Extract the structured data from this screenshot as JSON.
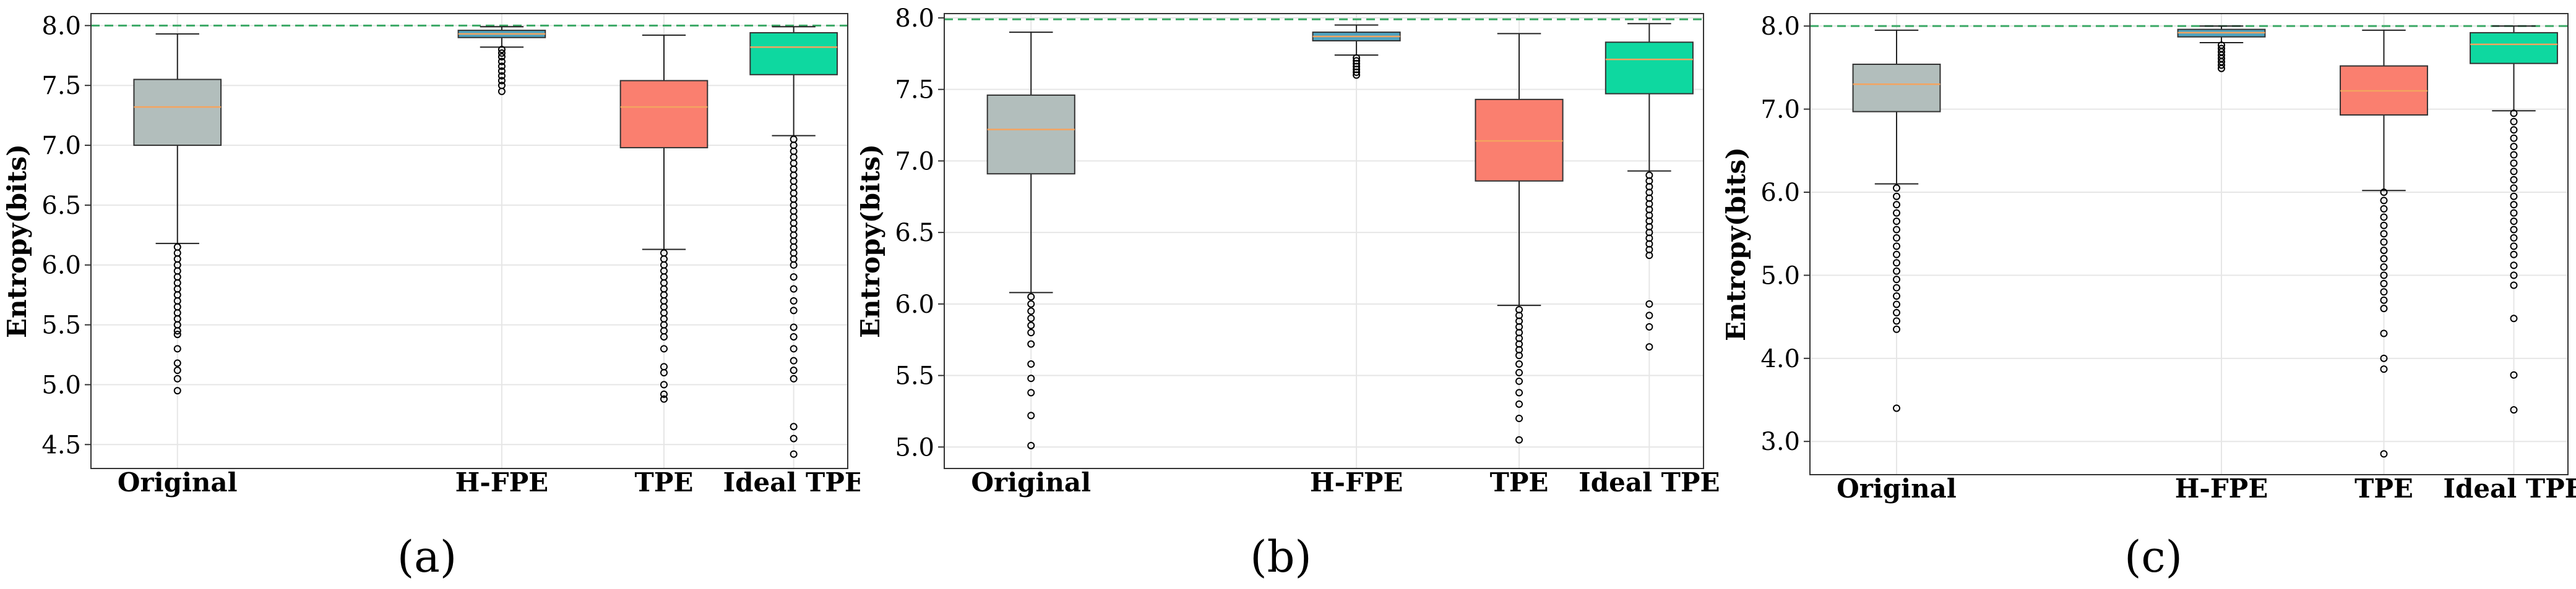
{
  "chart_data": [
    {
      "type": "box",
      "panel_label": "(a)",
      "ylabel": "Entropy(bits)",
      "ylim": [
        4.3,
        8.1
      ],
      "yticks": [
        4.5,
        5.0,
        5.5,
        6.0,
        6.5,
        7.0,
        7.5,
        8.0
      ],
      "ytick_labels": [
        "4.5",
        "5.0",
        "5.5",
        "6.0",
        "6.5",
        "7.0",
        "7.5",
        "8.0"
      ],
      "reference_line": 8.0,
      "grid": true,
      "categories": [
        "Original",
        "H-FPE",
        "TPE",
        "Ideal TPE"
      ],
      "x_positions": [
        0.8,
        3.8,
        5.3,
        6.5
      ],
      "x_range": [
        0,
        7
      ],
      "boxes": [
        {
          "name": "Original",
          "color": "#b2bebc",
          "whislo": 6.18,
          "q1": 7.0,
          "med": 7.32,
          "q3": 7.55,
          "whishi": 7.93,
          "fliers": [
            6.15,
            6.1,
            6.05,
            6.0,
            5.95,
            5.9,
            5.85,
            5.8,
            5.75,
            5.7,
            5.65,
            5.6,
            5.55,
            5.5,
            5.45,
            5.42,
            5.3,
            5.18,
            5.12,
            5.05,
            4.95
          ]
        },
        {
          "name": "H-FPE",
          "color": "#4fa3c0",
          "whislo": 7.82,
          "q1": 7.9,
          "med": 7.93,
          "q3": 7.96,
          "whishi": 7.99,
          "fliers": [
            7.8,
            7.77,
            7.74,
            7.7,
            7.66,
            7.62,
            7.58,
            7.54,
            7.5,
            7.45
          ]
        },
        {
          "name": "TPE",
          "color": "#fa7f6f",
          "whislo": 6.13,
          "q1": 6.98,
          "med": 7.32,
          "q3": 7.54,
          "whishi": 7.92,
          "fliers": [
            6.1,
            6.05,
            6.0,
            5.95,
            5.9,
            5.85,
            5.8,
            5.75,
            5.7,
            5.65,
            5.6,
            5.55,
            5.5,
            5.45,
            5.4,
            5.3,
            5.15,
            5.1,
            5.0,
            4.92,
            4.88
          ]
        },
        {
          "name": "Ideal TPE",
          "color": "#0ed8a0",
          "whislo": 7.08,
          "q1": 7.59,
          "med": 7.82,
          "q3": 7.94,
          "whishi": 7.99,
          "fliers": [
            7.05,
            7.0,
            6.95,
            6.9,
            6.85,
            6.8,
            6.75,
            6.7,
            6.65,
            6.6,
            6.55,
            6.5,
            6.45,
            6.4,
            6.35,
            6.3,
            6.25,
            6.2,
            6.15,
            6.1,
            6.05,
            6.0,
            5.9,
            5.8,
            5.7,
            5.62,
            5.48,
            5.4,
            5.3,
            5.2,
            5.12,
            5.05,
            4.65,
            4.55,
            4.42
          ]
        }
      ]
    },
    {
      "type": "box",
      "panel_label": "(b)",
      "ylabel": "Entropy(bits)",
      "ylim": [
        4.85,
        8.03
      ],
      "yticks": [
        5.0,
        5.5,
        6.0,
        6.5,
        7.0,
        7.5,
        8.0
      ],
      "ytick_labels": [
        "5.0",
        "5.5",
        "6.0",
        "6.5",
        "7.0",
        "7.5",
        "8.0"
      ],
      "reference_line": 7.99,
      "grid": true,
      "categories": [
        "Original",
        "H-FPE",
        "TPE",
        "Ideal TPE"
      ],
      "x_positions": [
        0.8,
        3.8,
        5.3,
        6.5
      ],
      "x_range": [
        0,
        7
      ],
      "boxes": [
        {
          "name": "Original",
          "color": "#b2bebc",
          "whislo": 6.08,
          "q1": 6.91,
          "med": 7.22,
          "q3": 7.46,
          "whishi": 7.9,
          "fliers": [
            6.05,
            6.0,
            5.95,
            5.9,
            5.85,
            5.8,
            5.72,
            5.58,
            5.48,
            5.38,
            5.22,
            5.01
          ]
        },
        {
          "name": "H-FPE",
          "color": "#4fa3c0",
          "whislo": 7.74,
          "q1": 7.84,
          "med": 7.87,
          "q3": 7.9,
          "whishi": 7.95,
          "fliers": [
            7.72,
            7.7,
            7.68,
            7.66,
            7.64,
            7.62,
            7.6
          ]
        },
        {
          "name": "TPE",
          "color": "#fa7f6f",
          "whislo": 5.99,
          "q1": 6.86,
          "med": 7.14,
          "q3": 7.43,
          "whishi": 7.89,
          "fliers": [
            5.96,
            5.92,
            5.88,
            5.84,
            5.8,
            5.76,
            5.72,
            5.68,
            5.64,
            5.58,
            5.52,
            5.46,
            5.38,
            5.3,
            5.2,
            5.05
          ]
        },
        {
          "name": "Ideal TPE",
          "color": "#0ed8a0",
          "whislo": 6.93,
          "q1": 7.47,
          "med": 7.71,
          "q3": 7.83,
          "whishi": 7.96,
          "fliers": [
            6.9,
            6.86,
            6.82,
            6.78,
            6.74,
            6.7,
            6.66,
            6.62,
            6.58,
            6.54,
            6.5,
            6.46,
            6.42,
            6.38,
            6.34,
            6.0,
            5.92,
            5.84,
            5.7
          ]
        }
      ]
    },
    {
      "type": "box",
      "panel_label": "(c)",
      "ylabel": "Entropy(bits)",
      "ylim": [
        2.6,
        8.15
      ],
      "yticks": [
        3.0,
        4.0,
        5.0,
        6.0,
        7.0,
        8.0
      ],
      "ytick_labels": [
        "3.0",
        "4.0",
        "5.0",
        "6.0",
        "7.0",
        "8.0"
      ],
      "reference_line": 8.0,
      "grid": true,
      "categories": [
        "Original",
        "H-FPE",
        "TPE",
        "Ideal TPE"
      ],
      "x_positions": [
        0.8,
        3.8,
        5.3,
        6.5
      ],
      "x_range": [
        0,
        7
      ],
      "boxes": [
        {
          "name": "Original",
          "color": "#b2bebc",
          "whislo": 6.1,
          "q1": 6.97,
          "med": 7.3,
          "q3": 7.54,
          "whishi": 7.95,
          "fliers": [
            6.05,
            5.95,
            5.85,
            5.75,
            5.65,
            5.55,
            5.45,
            5.35,
            5.25,
            5.15,
            5.05,
            4.95,
            4.85,
            4.75,
            4.65,
            4.55,
            4.45,
            4.35,
            3.4
          ]
        },
        {
          "name": "H-FPE",
          "color": "#4fa3c0",
          "whislo": 7.8,
          "q1": 7.87,
          "med": 7.92,
          "q3": 7.96,
          "whishi": 8.0,
          "fliers": [
            7.77,
            7.73,
            7.69,
            7.65,
            7.61,
            7.57,
            7.53,
            7.49
          ]
        },
        {
          "name": "TPE",
          "color": "#fa7f6f",
          "whislo": 6.02,
          "q1": 6.93,
          "med": 7.22,
          "q3": 7.52,
          "whishi": 7.95,
          "fliers": [
            6.0,
            5.9,
            5.8,
            5.7,
            5.6,
            5.5,
            5.4,
            5.3,
            5.2,
            5.1,
            5.0,
            4.9,
            4.8,
            4.7,
            4.6,
            4.3,
            4.0,
            3.87,
            2.85
          ]
        },
        {
          "name": "Ideal TPE",
          "color": "#0ed8a0",
          "whislo": 6.98,
          "q1": 7.55,
          "med": 7.78,
          "q3": 7.92,
          "whishi": 8.0,
          "fliers": [
            6.95,
            6.85,
            6.75,
            6.65,
            6.55,
            6.45,
            6.35,
            6.25,
            6.15,
            6.05,
            5.95,
            5.85,
            5.75,
            5.65,
            5.55,
            5.45,
            5.35,
            5.25,
            5.12,
            5.0,
            4.88,
            4.48,
            3.8,
            3.38
          ]
        }
      ]
    }
  ],
  "colors": {
    "median_line": "#f4a460",
    "reference_line": "#3aa865",
    "grid": "#e6e6e6",
    "axes": "#333333"
  }
}
